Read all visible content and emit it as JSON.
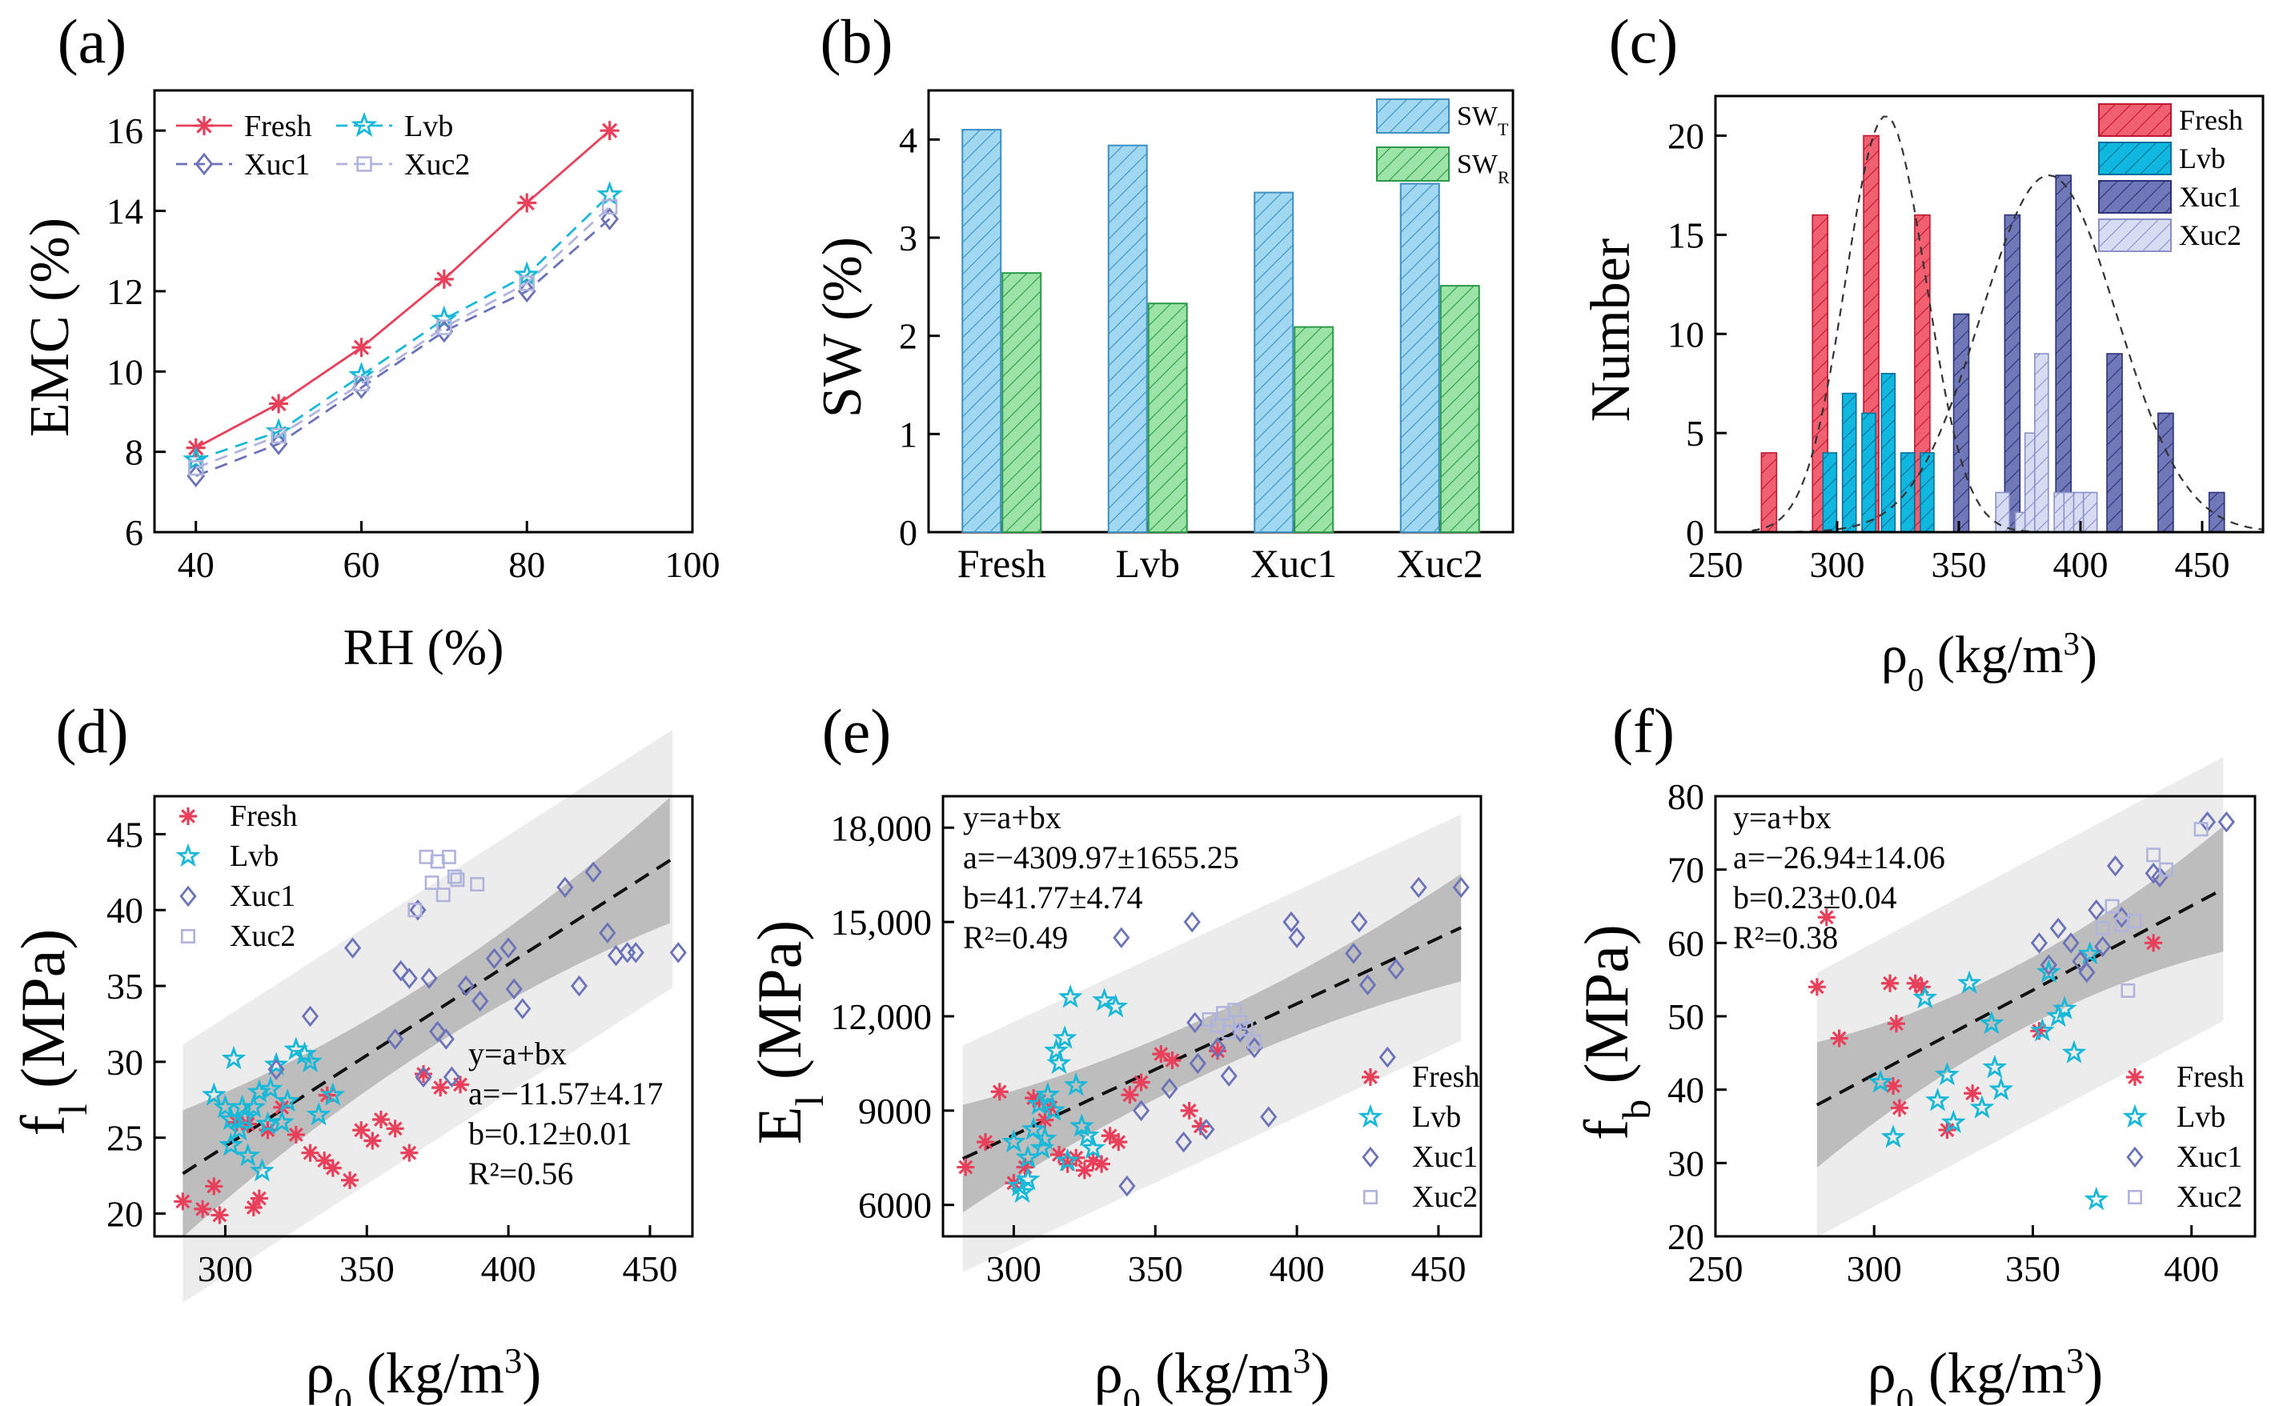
{
  "panels": [
    {
      "id": "a",
      "tag": "(a)",
      "type": "line",
      "title": "",
      "xlabel": "RH (%)",
      "ylabel": "EMC (%)",
      "xlim": [
        35,
        100
      ],
      "ylim": [
        6,
        17
      ],
      "xticks": [
        40,
        60,
        80,
        100
      ],
      "yticks": [
        6,
        8,
        10,
        12,
        14,
        16
      ],
      "legend": "top-left, 2 columns",
      "series": [
        {
          "name": "Fresh",
          "marker": "asterisk",
          "color": "#e8405a",
          "style": "solid",
          "x": [
            40,
            50,
            60,
            70,
            80,
            90
          ],
          "y": [
            8.1,
            9.2,
            10.6,
            12.3,
            14.2,
            16.0
          ]
        },
        {
          "name": "Lvb",
          "marker": "star",
          "color": "#17b8d8",
          "style": "dashed",
          "x": [
            40,
            50,
            60,
            70,
            80,
            90
          ],
          "y": [
            7.8,
            8.5,
            9.9,
            11.3,
            12.4,
            14.4
          ]
        },
        {
          "name": "Xuc1",
          "marker": "diamond",
          "color": "#6c72b8",
          "style": "dashed",
          "x": [
            40,
            50,
            60,
            70,
            80,
            90
          ],
          "y": [
            7.4,
            8.2,
            9.6,
            11.0,
            12.0,
            13.8
          ]
        },
        {
          "name": "Xuc2",
          "marker": "square",
          "color": "#b0b4dc",
          "style": "dashed",
          "x": [
            40,
            50,
            60,
            70,
            80,
            90
          ],
          "y": [
            7.6,
            8.4,
            9.7,
            11.1,
            12.2,
            14.1
          ]
        }
      ]
    },
    {
      "id": "b",
      "tag": "(b)",
      "type": "bar",
      "title": "",
      "xlabel": "",
      "ylabel": "SW (%)",
      "ylim": [
        0,
        4.5
      ],
      "yticks": [
        0,
        1,
        2,
        3,
        4
      ],
      "categories": [
        "Fresh",
        "Lvb",
        "Xuc1",
        "Xuc2"
      ],
      "legend": "top-right",
      "series": [
        {
          "name": "SW",
          "sub": "T",
          "color": "#9fd8f0",
          "hatch": "#3f8fc0",
          "values": [
            4.1,
            3.94,
            3.46,
            3.55
          ]
        },
        {
          "name": "SW",
          "sub": "R",
          "color": "#9ce3a8",
          "hatch": "#2c9a48",
          "values": [
            2.64,
            2.33,
            2.09,
            2.51
          ]
        }
      ]
    },
    {
      "id": "c",
      "type": "bar",
      "tag": "(c)",
      "title": "",
      "xlabel": "ρ",
      "xlabel_sub": "0",
      "xlabel_rest": " (kg/m",
      "xlabel_sup": "3",
      "xlabel_end": ")",
      "ylabel": "Number",
      "xlim": [
        250,
        475
      ],
      "ylim": [
        0,
        22
      ],
      "xticks": [
        250,
        300,
        350,
        400,
        450
      ],
      "yticks": [
        0,
        5,
        10,
        15,
        20
      ],
      "legend": "top-right",
      "series": [
        {
          "name": "Fresh",
          "color": "#f06070",
          "edge": "#c01830",
          "x": [
            272,
            293,
            314,
            335
          ],
          "values": [
            4,
            16,
            20,
            16
          ]
        },
        {
          "name": "Lvb",
          "color": "#10b8e0",
          "edge": "#0a6f9a",
          "x": [
            297,
            305,
            313,
            321,
            329,
            337
          ],
          "values": [
            4,
            7,
            6,
            8,
            4,
            4
          ]
        },
        {
          "name": "Xuc1",
          "color": "#7078b8",
          "edge": "#2a3378",
          "x": [
            351,
            372,
            393,
            414,
            435,
            456
          ],
          "values": [
            11,
            16,
            18,
            9,
            6,
            2
          ]
        },
        {
          "name": "Xuc2",
          "color": "#d8dcf2",
          "edge": "#8a90c8",
          "x": [
            368,
            376,
            380,
            384,
            392,
            396,
            400,
            404
          ],
          "values": [
            2,
            1,
            5,
            9,
            2,
            2,
            2,
            2
          ]
        }
      ],
      "fits": [
        {
          "mu": 320,
          "sigma": 16.5,
          "peak": 21
        },
        {
          "mu": 387,
          "sigma": 28,
          "peak": 18
        }
      ]
    },
    {
      "id": "d",
      "tag": "(d)",
      "type": "scatter",
      "xlabel": "ρ",
      "xlabel_sub": "0",
      "xlabel_rest": " (kg/m",
      "xlabel_sup": "3",
      "xlabel_end": ")",
      "ylabel": "f",
      "ylabel_sub": "l",
      "ylabel_rest": " (MPa)",
      "xlim": [
        275,
        465
      ],
      "ylim": [
        18.5,
        47.5
      ],
      "xticks": [
        300,
        350,
        400,
        450
      ],
      "yticks": [
        20,
        25,
        30,
        35,
        40,
        45
      ],
      "fit": {
        "a": -11.57,
        "b": 0.12,
        "x0": 285,
        "x1": 458,
        "ci": 2.2,
        "pi": 8.5
      },
      "annot": [
        "y=a+bx",
        "a=−11.57±4.17",
        "b=0.12±0.01",
        "R²=0.56"
      ],
      "annot_pos": "right",
      "legend": "top-left",
      "series": [
        {
          "name": "Fresh",
          "marker": "asterisk",
          "color": "#e8405a",
          "x": [
            285,
            292,
            296,
            298,
            304,
            308,
            310,
            312,
            315,
            320,
            325,
            330,
            335,
            336,
            338,
            344,
            348,
            352,
            355,
            360,
            365,
            370,
            376,
            383
          ],
          "y": [
            20.8,
            20.3,
            21.8,
            19.9,
            26.0,
            25.9,
            20.4,
            21.0,
            25.5,
            27.0,
            25.2,
            24.0,
            23.5,
            27.8,
            23.0,
            22.2,
            25.5,
            24.8,
            26.2,
            25.6,
            24.0,
            29.2,
            28.3,
            28.5
          ]
        },
        {
          "name": "Lvb",
          "marker": "star",
          "color": "#17b8d8",
          "x": [
            296,
            300,
            302,
            303,
            305,
            306,
            307,
            308,
            310,
            312,
            313,
            315,
            316,
            318,
            320,
            322,
            325,
            328,
            330,
            333,
            338,
            302
          ],
          "y": [
            27.8,
            27.0,
            26.2,
            30.2,
            25.5,
            27.0,
            26.3,
            23.8,
            27.0,
            28.0,
            22.8,
            25.9,
            28.2,
            29.8,
            26.0,
            27.4,
            30.8,
            30.5,
            30.0,
            26.5,
            27.8,
            24.5
          ]
        },
        {
          "name": "Xuc1",
          "marker": "diamond",
          "color": "#6c72b8",
          "x": [
            318,
            330,
            345,
            360,
            362,
            365,
            368,
            370,
            372,
            375,
            378,
            380,
            385,
            390,
            395,
            400,
            402,
            405,
            420,
            425,
            430,
            435,
            438,
            442,
            445,
            460
          ],
          "y": [
            29.5,
            33.0,
            37.5,
            31.5,
            36.0,
            35.5,
            40.0,
            29.0,
            35.5,
            32.0,
            31.5,
            29.0,
            35.0,
            34.0,
            36.8,
            37.5,
            34.8,
            33.5,
            41.5,
            35.0,
            42.5,
            38.5,
            37.0,
            37.2,
            37.2,
            37.2
          ]
        },
        {
          "name": "Xuc2",
          "marker": "square",
          "color": "#b0b4dc",
          "x": [
            367,
            371,
            373,
            375,
            377,
            379,
            381,
            382,
            389
          ],
          "y": [
            40.0,
            43.5,
            41.8,
            43.2,
            41.0,
            43.5,
            42.2,
            42.0,
            41.7
          ]
        }
      ]
    },
    {
      "id": "e",
      "tag": "(e)",
      "type": "scatter",
      "xlabel": "ρ",
      "xlabel_sub": "0",
      "xlabel_rest": " (kg/m",
      "xlabel_sup": "3",
      "xlabel_end": ")",
      "ylabel": "E",
      "ylabel_sub": "l",
      "ylabel_rest": " (MPa)",
      "xlim": [
        275,
        465
      ],
      "ylim": [
        5000,
        19000
      ],
      "xticks": [
        300,
        350,
        400,
        450
      ],
      "yticks": [
        6000,
        9000,
        12000,
        15000,
        18000
      ],
      "ytick_labels": [
        "6000",
        "9000",
        "12,000",
        "15,000",
        "18,000"
      ],
      "fit": {
        "a": -4309.97,
        "b": 41.77,
        "x0": 282,
        "x1": 458,
        "ci": 900,
        "pi": 3600
      },
      "annot": [
        "y=a+bx",
        "a=−4309.97±1655.25",
        "b=41.77±4.74",
        "R²=0.49"
      ],
      "annot_pos": "left",
      "legend": "bottom-right",
      "series": [
        {
          "name": "Fresh",
          "marker": "asterisk",
          "color": "#e8405a",
          "x": [
            283,
            290,
            295,
            300,
            304,
            307,
            309,
            311,
            313,
            316,
            319,
            322,
            325,
            328,
            331,
            334,
            337,
            341,
            345,
            352,
            356,
            362,
            366,
            372
          ],
          "y": [
            7200,
            8000,
            9600,
            6700,
            7200,
            9400,
            9300,
            8700,
            9100,
            7600,
            7300,
            7500,
            7100,
            7400,
            7300,
            8200,
            8000,
            9500,
            9900,
            10800,
            10600,
            9000,
            8500,
            10900
          ]
        },
        {
          "name": "Lvb",
          "marker": "star",
          "color": "#17b8d8",
          "x": [
            300,
            302,
            303,
            305,
            307,
            309,
            310,
            312,
            314,
            316,
            318,
            320,
            322,
            324,
            326,
            328,
            332,
            336,
            305,
            311,
            315,
            319
          ],
          "y": [
            8000,
            6600,
            6400,
            7500,
            8400,
            9200,
            7800,
            9500,
            9000,
            10500,
            11300,
            12600,
            9800,
            8500,
            8200,
            7800,
            12500,
            12300,
            6800,
            8100,
            10900,
            7400
          ]
        },
        {
          "name": "Xuc1",
          "marker": "diamond",
          "color": "#6c72b8",
          "x": [
            338,
            345,
            355,
            360,
            363,
            365,
            368,
            372,
            376,
            380,
            385,
            390,
            398,
            400,
            420,
            422,
            425,
            432,
            435,
            443,
            458,
            364,
            340
          ],
          "y": [
            14500,
            9000,
            9700,
            8000,
            15000,
            10500,
            8400,
            11000,
            10100,
            11500,
            11000,
            8800,
            15000,
            14500,
            14000,
            15000,
            13000,
            10700,
            13500,
            16100,
            16100,
            11800,
            6600
          ]
        },
        {
          "name": "Xuc2",
          "marker": "square",
          "color": "#b0b4dc",
          "x": [
            369,
            372,
            374,
            376,
            378,
            380,
            382,
            385
          ],
          "y": [
            11900,
            11700,
            12100,
            11500,
            12200,
            11800,
            11600,
            11200
          ]
        }
      ]
    },
    {
      "id": "f",
      "tag": "(f)",
      "type": "scatter",
      "xlabel": "ρ",
      "xlabel_sub": "0",
      "xlabel_rest": " (kg/m",
      "xlabel_sup": "3",
      "xlabel_end": ")",
      "ylabel": "f",
      "ylabel_sub": "b",
      "ylabel_rest": " (MPa)",
      "xlim": [
        250,
        420
      ],
      "ylim": [
        20,
        80
      ],
      "xticks": [
        250,
        300,
        350,
        400
      ],
      "yticks": [
        20,
        30,
        40,
        50,
        60,
        70,
        80
      ],
      "fit": {
        "a": -26.94,
        "b": 0.23,
        "x0": 282,
        "x1": 410,
        "ci": 4.5,
        "pi": 18
      },
      "annot": [
        "y=a+bx",
        "a=−26.94±14.06",
        "b=0.23±0.04",
        "R²=0.38"
      ],
      "annot_pos": "left",
      "legend": "bottom-right",
      "series": [
        {
          "name": "Fresh",
          "marker": "asterisk",
          "color": "#e8405a",
          "x": [
            282,
            285,
            289,
            305,
            306,
            307,
            308,
            313,
            315,
            323,
            331,
            352,
            388
          ],
          "y": [
            54.0,
            63.5,
            47.0,
            54.5,
            40.5,
            49.0,
            37.5,
            54.5,
            54.0,
            34.5,
            39.5,
            48.0,
            60.0
          ]
        },
        {
          "name": "Lvb",
          "marker": "star",
          "color": "#17b8d8",
          "x": [
            302,
            306,
            316,
            320,
            323,
            325,
            330,
            334,
            337,
            338,
            340,
            353,
            355,
            358,
            360,
            363,
            368,
            370
          ],
          "y": [
            41.0,
            33.5,
            52.5,
            38.5,
            42.0,
            35.5,
            54.5,
            37.5,
            49.0,
            43.0,
            40.0,
            48.0,
            56.0,
            50.0,
            51.0,
            45.0,
            58.5,
            25.0
          ]
        },
        {
          "name": "Xuc1",
          "marker": "diamond",
          "color": "#6c72b8",
          "x": [
            352,
            355,
            358,
            362,
            365,
            367,
            370,
            372,
            376,
            378,
            388,
            390,
            405,
            411
          ],
          "y": [
            60.0,
            57.0,
            62.0,
            60.0,
            57.5,
            56.0,
            64.5,
            59.5,
            70.5,
            63.5,
            69.5,
            69.0,
            76.5,
            76.5
          ]
        },
        {
          "name": "Xuc2",
          "marker": "square",
          "color": "#b0b4dc",
          "x": [
            372,
            375,
            378,
            380,
            382,
            388,
            392,
            403
          ],
          "y": [
            62.0,
            65.0,
            62.5,
            53.5,
            63.0,
            72.0,
            70.0,
            75.5
          ]
        }
      ]
    }
  ]
}
